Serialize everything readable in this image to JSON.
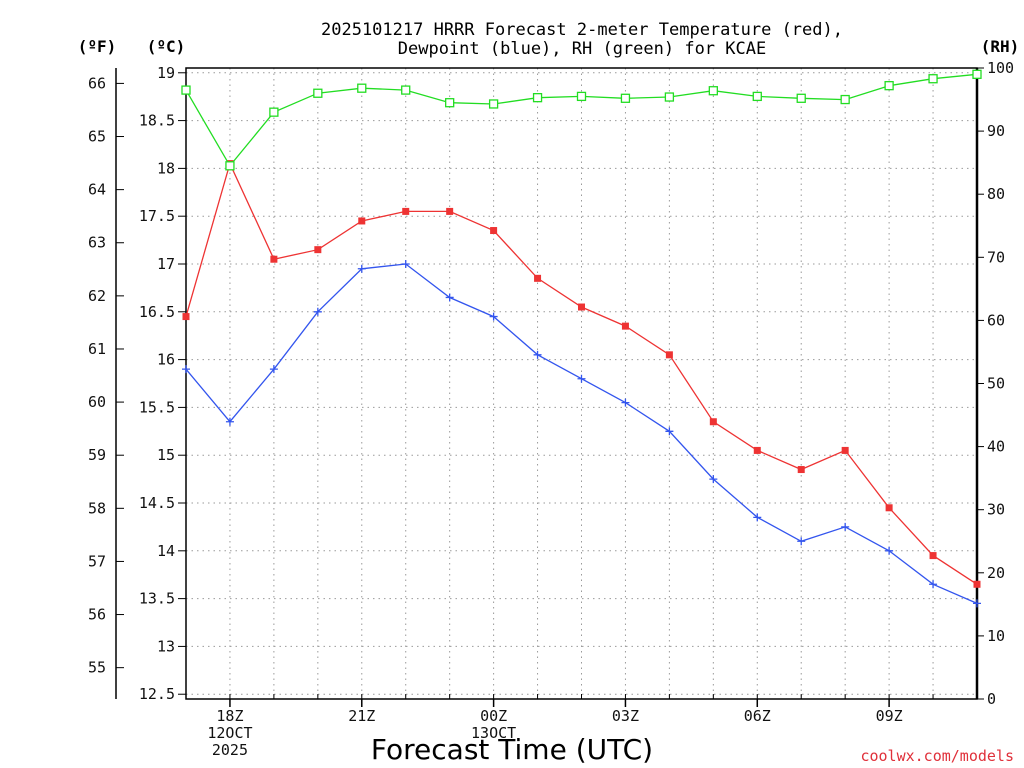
{
  "chart_data": {
    "type": "line",
    "title_line1": "2025101217 HRRR Forecast 2-meter Temperature (red),",
    "title_line2": "Dewpoint (blue), RH (green) for KCAE",
    "xlabel": "Forecast Time (UTC)",
    "credit": "coolwx.com/models",
    "units": {
      "fahrenheit": "(ºF)",
      "celsius": "(ºC)",
      "rh": "(RH)"
    },
    "ylim_celsius": [
      12.45,
      19.05
    ],
    "ylim_rh": [
      0,
      100
    ],
    "x_hours": [
      17,
      18,
      19,
      20,
      21,
      22,
      23,
      24,
      25,
      26,
      27,
      28,
      29,
      30,
      31,
      32,
      33,
      34,
      35
    ],
    "x_range": [
      17,
      35
    ],
    "x_ticks": [
      {
        "hour": 18,
        "lines": [
          "18Z",
          "12OCT",
          "2025"
        ]
      },
      {
        "hour": 21,
        "lines": [
          "21Z"
        ]
      },
      {
        "hour": 24,
        "lines": [
          "00Z",
          "13OCT"
        ]
      },
      {
        "hour": 27,
        "lines": [
          "03Z"
        ]
      },
      {
        "hour": 30,
        "lines": [
          "06Z"
        ]
      },
      {
        "hour": 33,
        "lines": [
          "09Z"
        ]
      }
    ],
    "celsius_ticks": [
      "12.5",
      "13",
      "13.5",
      "14",
      "14.5",
      "15",
      "15.5",
      "16",
      "16.5",
      "17",
      "17.5",
      "18",
      "18.5",
      "19"
    ],
    "fahrenheit_ticks": [
      "55",
      "56",
      "57",
      "58",
      "59",
      "60",
      "61",
      "62",
      "63",
      "64",
      "65",
      "66"
    ],
    "rh_ticks": [
      "0",
      "10",
      "20",
      "30",
      "40",
      "50",
      "60",
      "70",
      "80",
      "90",
      "100"
    ],
    "series": [
      {
        "name": "Temperature",
        "color": "#ee3333",
        "marker": "filled-square",
        "axis": "celsius",
        "values": [
          16.45,
          18.05,
          17.05,
          17.15,
          17.45,
          17.55,
          17.55,
          17.35,
          16.85,
          16.55,
          16.35,
          16.05,
          15.35,
          15.05,
          14.85,
          15.05,
          14.45,
          13.95,
          13.65
        ]
      },
      {
        "name": "Dewpoint",
        "color": "#3355ee",
        "marker": "plus",
        "axis": "celsius",
        "values": [
          15.9,
          15.35,
          15.9,
          16.5,
          16.95,
          17.0,
          16.65,
          16.45,
          16.05,
          15.8,
          15.55,
          15.25,
          14.75,
          14.35,
          14.1,
          14.25,
          14.0,
          13.65,
          13.45
        ]
      },
      {
        "name": "RH",
        "color": "#22dd22",
        "marker": "open-square",
        "axis": "rh",
        "values": [
          96.5,
          84.5,
          93,
          96,
          96.8,
          96.5,
          94.5,
          94.3,
          95.3,
          95.5,
          95.2,
          95.4,
          96.4,
          95.5,
          95.2,
          95,
          97.2,
          98.3,
          99
        ]
      }
    ]
  }
}
